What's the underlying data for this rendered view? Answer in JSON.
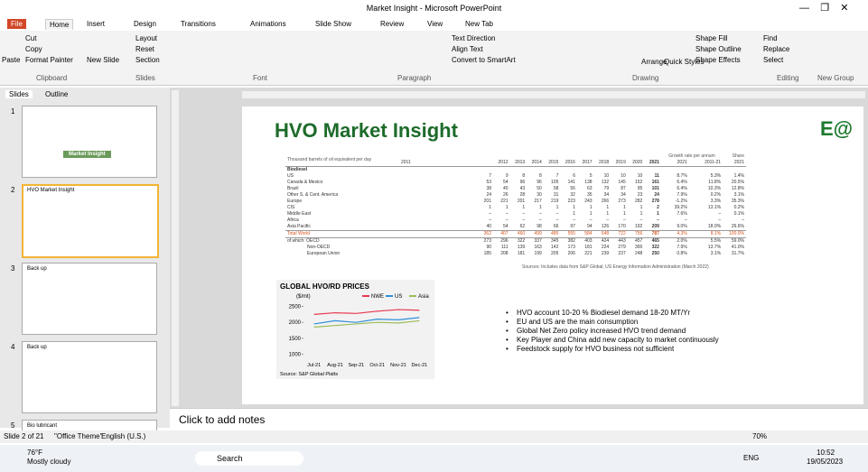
{
  "window": {
    "title": "Market Insight - Microsoft PowerPoint"
  },
  "tabs": [
    "File",
    "Home",
    "Insert",
    "Design",
    "Transitions",
    "Animations",
    "Slide Show",
    "Review",
    "View",
    "New Tab"
  ],
  "ribbon": {
    "buttons": [
      "Cut",
      "Copy",
      "Format Painter",
      "Paste",
      "New Slide",
      "Layout",
      "Reset",
      "Section",
      "Text Direction",
      "Align Text",
      "Convert to SmartArt",
      "Arrange",
      "Quick Styles",
      "Shape Fill",
      "Shape Outline",
      "Shape Effects",
      "Find",
      "Replace",
      "Select"
    ],
    "groups": [
      "Clipboard",
      "Slides",
      "Font",
      "Paragraph",
      "Drawing",
      "Editing",
      "New Group"
    ]
  },
  "panel": {
    "tabs": [
      "Slides",
      "Outline"
    ],
    "thumbs": [
      {
        "number": "1",
        "label": "Market Insight"
      },
      {
        "number": "2",
        "label": "HVO Market Insight"
      },
      {
        "number": "3",
        "label": "Back up"
      },
      {
        "number": "4",
        "label": "Back up"
      },
      {
        "number": "5",
        "label": "Bio lubricant"
      }
    ]
  },
  "slide": {
    "title": "HVO Market Insight",
    "logo": "E@",
    "table": {
      "unit": "Thousand barrels of oil equivalent per day",
      "growth": "Growth rate per annum",
      "share": "Share",
      "header": [
        "2011",
        "2012",
        "2013",
        "2014",
        "2015",
        "2016",
        "2017",
        "2018",
        "2019",
        "2020",
        "2021",
        "2021",
        "2011-21",
        "2021"
      ],
      "section": "Biodiesel",
      "rows": [
        [
          "US",
          "7",
          "9",
          "8",
          "8",
          "7",
          "6",
          "5",
          "10",
          "10",
          "10",
          "11",
          "8.7%",
          "5.3%",
          "1.4%"
        ],
        [
          "Canada & Mexico",
          "53",
          "54",
          "96",
          "96",
          "105",
          "141",
          "138",
          "132",
          "145",
          "152",
          "161",
          "6.4%",
          "11.8%",
          "20.5%"
        ],
        [
          "Brazil",
          "38",
          "40",
          "43",
          "50",
          "58",
          "56",
          "63",
          "79",
          "87",
          "95",
          "101",
          "6.4%",
          "10.3%",
          "12.8%"
        ],
        [
          "Other S. & Cent. America",
          "24",
          "26",
          "28",
          "30",
          "31",
          "32",
          "35",
          "34",
          "34",
          "23",
          "24",
          "7.9%",
          "0.2%",
          "3.1%"
        ],
        [
          "Europe",
          "201",
          "221",
          "201",
          "217",
          "219",
          "223",
          "243",
          "266",
          "273",
          "282",
          "278",
          "-1.2%",
          "3.3%",
          "35.3%"
        ],
        [
          "CIS",
          "1",
          "1",
          "1",
          "1",
          "1",
          "1",
          "1",
          "1",
          "1",
          "1",
          "2",
          "39.2%",
          "13.1%",
          "0.2%"
        ],
        [
          "Middle East",
          "–",
          "–",
          "–",
          "–",
          "–",
          "1",
          "1",
          "1",
          "1",
          "1",
          "1",
          "7.6%",
          "–",
          "0.1%"
        ],
        [
          "Africa",
          "–",
          "–",
          "–",
          "–",
          "–",
          "–",
          "–",
          "–",
          "–",
          "–",
          "–",
          "–",
          "–",
          "–"
        ],
        [
          "Asia Pacific",
          "40",
          "54",
          "62",
          "98",
          "66",
          "97",
          "94",
          "126",
          "170",
          "192",
          "209",
          "9.0%",
          "18.0%",
          "26.6%"
        ],
        [
          "Total World",
          "362",
          "407",
          "460",
          "499",
          "486",
          "555",
          "584",
          "648",
          "722",
          "756",
          "787",
          "4.3%",
          "8.1%",
          "100.0%"
        ],
        [
          "of which: OECD",
          "273",
          "296",
          "322",
          "337",
          "345",
          "382",
          "403",
          "424",
          "443",
          "457",
          "465",
          "2.0%",
          "5.5%",
          "59.0%"
        ],
        [
          "Non-OECD",
          "90",
          "111",
          "139",
          "163",
          "142",
          "173",
          "181",
          "224",
          "279",
          "300",
          "322",
          "7.9%",
          "13.7%",
          "41.0%"
        ],
        [
          "European Union",
          "185",
          "208",
          "181",
          "199",
          "205",
          "206",
          "221",
          "239",
          "237",
          "248",
          "250",
          "0.8%",
          "3.1%",
          "31.7%"
        ]
      ],
      "source": "Sources: Includes data from S&P Global; US Energy Information Administration (March 2022)"
    },
    "chart": {
      "type": "line",
      "title": "GLOBAL HVO/RD PRICES",
      "unit": "($/mt)",
      "categories": [
        "Jul-21",
        "Aug-21",
        "Sep-21",
        "Oct-21",
        "Nov-21",
        "Dec-21"
      ],
      "series": [
        {
          "name": "NWE",
          "color": "#e8384f",
          "values": [
            2250,
            2300,
            2280,
            2350,
            2400,
            2380
          ]
        },
        {
          "name": "US",
          "color": "#2f8fd8",
          "values": [
            1950,
            2050,
            2000,
            2100,
            2080,
            2150
          ]
        },
        {
          "name": "Asia",
          "color": "#9bbb59",
          "values": [
            1850,
            1900,
            1950,
            2000,
            1980,
            2050
          ]
        }
      ],
      "ylim": [
        900,
        2600
      ],
      "yticks": [
        1000,
        1500,
        2000,
        2500
      ],
      "source": "Source: S&P Global Platts"
    },
    "bullets": [
      "HVO account 10-20 % Biodiesel demand 18-20 MT/Yr",
      "EU and US are the main consumption",
      "Global Net Zero policy increased HVO trend demand",
      "Key Player and China add new capacity to market continuously",
      "Feedstock supply for HVO business not sufficient"
    ]
  },
  "notes": "Click to add notes",
  "status": [
    "Slide 2 of 21",
    "\"Office Theme\"",
    "English (U.S.)",
    "70%"
  ],
  "taskbar": {
    "temp": "76°F",
    "weather": "Mostly cloudy",
    "search": "Search",
    "lang": "ENG",
    "time": "10:52",
    "date": "19/05/2023"
  }
}
